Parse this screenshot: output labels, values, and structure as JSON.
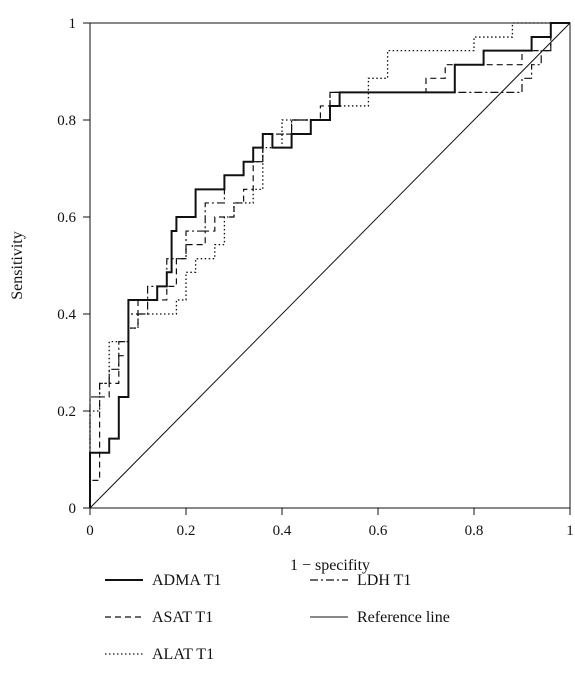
{
  "chart_data": {
    "type": "line",
    "title": "",
    "xlabel": "1 − specifity",
    "ylabel": "Sensitivity",
    "xlim": [
      0,
      1
    ],
    "ylim": [
      0,
      1
    ],
    "x_ticks": [
      "0",
      "0.2",
      "0.4",
      "0.6",
      "0.8",
      "1"
    ],
    "y_ticks": [
      "0",
      "0.2",
      "0.4",
      "0.6",
      "0.8",
      "1"
    ],
    "grid": false,
    "legend_position": "bottom",
    "series": [
      {
        "name": "ADMA T1",
        "line_style": "solid-thick",
        "points": [
          [
            0,
            0
          ],
          [
            0,
            0.114
          ],
          [
            0.04,
            0.114
          ],
          [
            0.04,
            0.143
          ],
          [
            0.06,
            0.143
          ],
          [
            0.06,
            0.229
          ],
          [
            0.08,
            0.229
          ],
          [
            0.08,
            0.429
          ],
          [
            0.14,
            0.429
          ],
          [
            0.14,
            0.457
          ],
          [
            0.16,
            0.457
          ],
          [
            0.16,
            0.486
          ],
          [
            0.17,
            0.486
          ],
          [
            0.17,
            0.571
          ],
          [
            0.18,
            0.571
          ],
          [
            0.18,
            0.6
          ],
          [
            0.22,
            0.6
          ],
          [
            0.22,
            0.657
          ],
          [
            0.28,
            0.657
          ],
          [
            0.28,
            0.686
          ],
          [
            0.32,
            0.686
          ],
          [
            0.32,
            0.714
          ],
          [
            0.34,
            0.714
          ],
          [
            0.34,
            0.743
          ],
          [
            0.36,
            0.743
          ],
          [
            0.36,
            0.771
          ],
          [
            0.38,
            0.771
          ],
          [
            0.38,
            0.743
          ],
          [
            0.42,
            0.743
          ],
          [
            0.42,
            0.771
          ],
          [
            0.46,
            0.771
          ],
          [
            0.46,
            0.8
          ],
          [
            0.5,
            0.8
          ],
          [
            0.5,
            0.829
          ],
          [
            0.52,
            0.829
          ],
          [
            0.52,
            0.857
          ],
          [
            0.76,
            0.857
          ],
          [
            0.76,
            0.914
          ],
          [
            0.82,
            0.914
          ],
          [
            0.82,
            0.943
          ],
          [
            0.92,
            0.943
          ],
          [
            0.92,
            0.971
          ],
          [
            0.96,
            0.971
          ],
          [
            0.96,
            1
          ],
          [
            1,
            1
          ]
        ]
      },
      {
        "name": "ASAT T1",
        "line_style": "dashed",
        "points": [
          [
            0,
            0
          ],
          [
            0,
            0.057
          ],
          [
            0.02,
            0.057
          ],
          [
            0.02,
            0.229
          ],
          [
            0.04,
            0.229
          ],
          [
            0.04,
            0.257
          ],
          [
            0.06,
            0.257
          ],
          [
            0.06,
            0.314
          ],
          [
            0.08,
            0.314
          ],
          [
            0.08,
            0.371
          ],
          [
            0.1,
            0.371
          ],
          [
            0.1,
            0.429
          ],
          [
            0.16,
            0.429
          ],
          [
            0.16,
            0.457
          ],
          [
            0.18,
            0.457
          ],
          [
            0.18,
            0.514
          ],
          [
            0.2,
            0.514
          ],
          [
            0.2,
            0.543
          ],
          [
            0.24,
            0.543
          ],
          [
            0.24,
            0.571
          ],
          [
            0.26,
            0.571
          ],
          [
            0.26,
            0.6
          ],
          [
            0.3,
            0.6
          ],
          [
            0.3,
            0.629
          ],
          [
            0.32,
            0.629
          ],
          [
            0.32,
            0.657
          ],
          [
            0.34,
            0.657
          ],
          [
            0.34,
            0.714
          ],
          [
            0.36,
            0.714
          ],
          [
            0.36,
            0.771
          ],
          [
            0.42,
            0.771
          ],
          [
            0.42,
            0.8
          ],
          [
            0.48,
            0.8
          ],
          [
            0.48,
            0.829
          ],
          [
            0.5,
            0.829
          ],
          [
            0.5,
            0.857
          ],
          [
            0.7,
            0.857
          ],
          [
            0.7,
            0.886
          ],
          [
            0.74,
            0.886
          ],
          [
            0.74,
            0.914
          ],
          [
            0.9,
            0.914
          ],
          [
            0.9,
            0.943
          ],
          [
            0.96,
            0.943
          ],
          [
            0.96,
            1
          ],
          [
            1,
            1
          ]
        ]
      },
      {
        "name": "ALAT T1",
        "line_style": "dotted",
        "points": [
          [
            0,
            0
          ],
          [
            0,
            0.2
          ],
          [
            0.02,
            0.2
          ],
          [
            0.02,
            0.257
          ],
          [
            0.04,
            0.257
          ],
          [
            0.04,
            0.343
          ],
          [
            0.08,
            0.343
          ],
          [
            0.08,
            0.371
          ],
          [
            0.1,
            0.371
          ],
          [
            0.1,
            0.4
          ],
          [
            0.18,
            0.4
          ],
          [
            0.18,
            0.429
          ],
          [
            0.2,
            0.429
          ],
          [
            0.2,
            0.486
          ],
          [
            0.22,
            0.486
          ],
          [
            0.22,
            0.514
          ],
          [
            0.26,
            0.514
          ],
          [
            0.26,
            0.543
          ],
          [
            0.28,
            0.543
          ],
          [
            0.28,
            0.6
          ],
          [
            0.3,
            0.6
          ],
          [
            0.3,
            0.629
          ],
          [
            0.34,
            0.629
          ],
          [
            0.34,
            0.657
          ],
          [
            0.36,
            0.657
          ],
          [
            0.36,
            0.743
          ],
          [
            0.4,
            0.743
          ],
          [
            0.4,
            0.8
          ],
          [
            0.5,
            0.8
          ],
          [
            0.5,
            0.829
          ],
          [
            0.58,
            0.829
          ],
          [
            0.58,
            0.886
          ],
          [
            0.62,
            0.886
          ],
          [
            0.62,
            0.943
          ],
          [
            0.8,
            0.943
          ],
          [
            0.8,
            0.971
          ],
          [
            0.88,
            0.971
          ],
          [
            0.88,
            1
          ],
          [
            1,
            1
          ]
        ]
      },
      {
        "name": "LDH T1",
        "line_style": "dash-dot",
        "points": [
          [
            0,
            0
          ],
          [
            0,
            0.229
          ],
          [
            0.02,
            0.229
          ],
          [
            0.02,
            0.257
          ],
          [
            0.04,
            0.257
          ],
          [
            0.04,
            0.286
          ],
          [
            0.06,
            0.286
          ],
          [
            0.06,
            0.343
          ],
          [
            0.08,
            0.343
          ],
          [
            0.08,
            0.4
          ],
          [
            0.12,
            0.4
          ],
          [
            0.12,
            0.457
          ],
          [
            0.16,
            0.457
          ],
          [
            0.16,
            0.514
          ],
          [
            0.2,
            0.514
          ],
          [
            0.2,
            0.571
          ],
          [
            0.24,
            0.571
          ],
          [
            0.24,
            0.629
          ],
          [
            0.28,
            0.629
          ],
          [
            0.28,
            0.686
          ],
          [
            0.32,
            0.686
          ],
          [
            0.32,
            0.714
          ],
          [
            0.36,
            0.714
          ],
          [
            0.36,
            0.771
          ],
          [
            0.42,
            0.771
          ],
          [
            0.42,
            0.8
          ],
          [
            0.5,
            0.8
          ],
          [
            0.5,
            0.857
          ],
          [
            0.72,
            0.857
          ],
          [
            0.72,
            0.857
          ],
          [
            0.9,
            0.857
          ],
          [
            0.9,
            0.886
          ],
          [
            0.92,
            0.886
          ],
          [
            0.92,
            0.914
          ],
          [
            0.94,
            0.914
          ],
          [
            0.94,
            0.943
          ],
          [
            0.96,
            0.943
          ],
          [
            0.96,
            1
          ],
          [
            1,
            1
          ]
        ]
      },
      {
        "name": "Reference line",
        "line_style": "solid-thin",
        "points": [
          [
            0,
            0
          ],
          [
            1,
            1
          ]
        ]
      }
    ]
  }
}
